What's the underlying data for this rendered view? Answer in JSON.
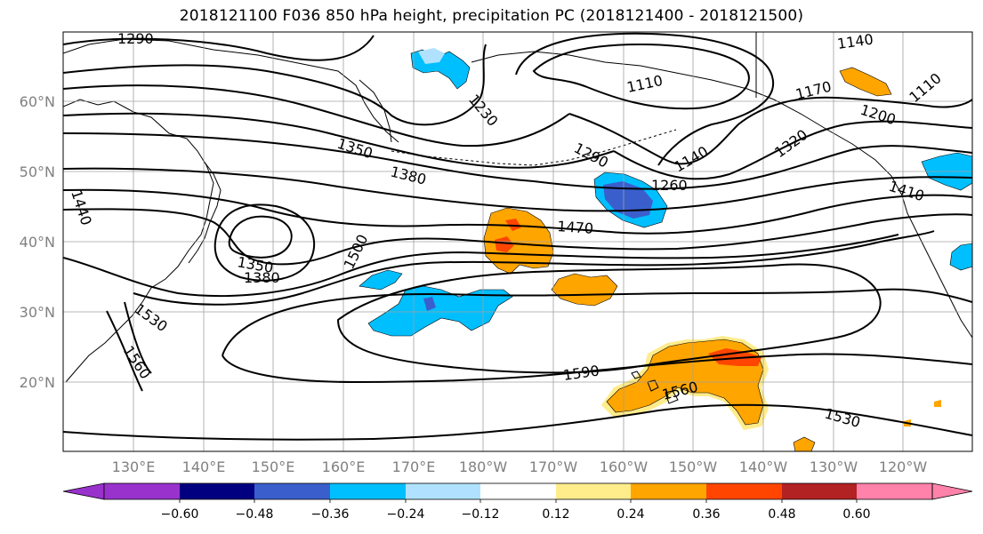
{
  "title": "2018121100 F036 850 hPa height, precipitation PC (2018121400 - 2018121500)",
  "lat_labels": [
    "60°N",
    "50°N",
    "40°N",
    "30°N",
    "20°N"
  ],
  "lon_labels": [
    "130°E",
    "140°E",
    "150°E",
    "160°E",
    "170°E",
    "180°W",
    "170°W",
    "160°W",
    "150°W",
    "140°W",
    "130°W",
    "120°W"
  ],
  "contour_labels": [
    "1290",
    "1230",
    "1110",
    "1140",
    "1170",
    "1200",
    "1140",
    "1350",
    "1380",
    "1290",
    "1320",
    "1260",
    "1470",
    "1410",
    "1440",
    "1350",
    "1380",
    "1500",
    "1530",
    "1560",
    "1590",
    "1560",
    "1530",
    "1110"
  ],
  "colorbar": {
    "ticks": [
      "−0.60",
      "−0.48",
      "−0.36",
      "−0.24",
      "−0.12",
      "0.12",
      "0.24",
      "0.36",
      "0.48",
      "0.60"
    ],
    "colors": [
      "#9932cc",
      "#000080",
      "#3a5fcd",
      "#00bfff",
      "#b0e2ff",
      "#ffffff",
      "#ffec8b",
      "#ffa500",
      "#ff4500",
      "#b22222",
      "#ff82ab"
    ]
  },
  "colors": {
    "neg_light": "#b0e2ff",
    "neg_mid": "#00bfff",
    "neg_dark": "#3a5fcd",
    "pos_light": "#ffec8b",
    "pos_mid": "#ffa500",
    "pos_dark": "#ff4500",
    "grid": "#a0a0a0"
  }
}
